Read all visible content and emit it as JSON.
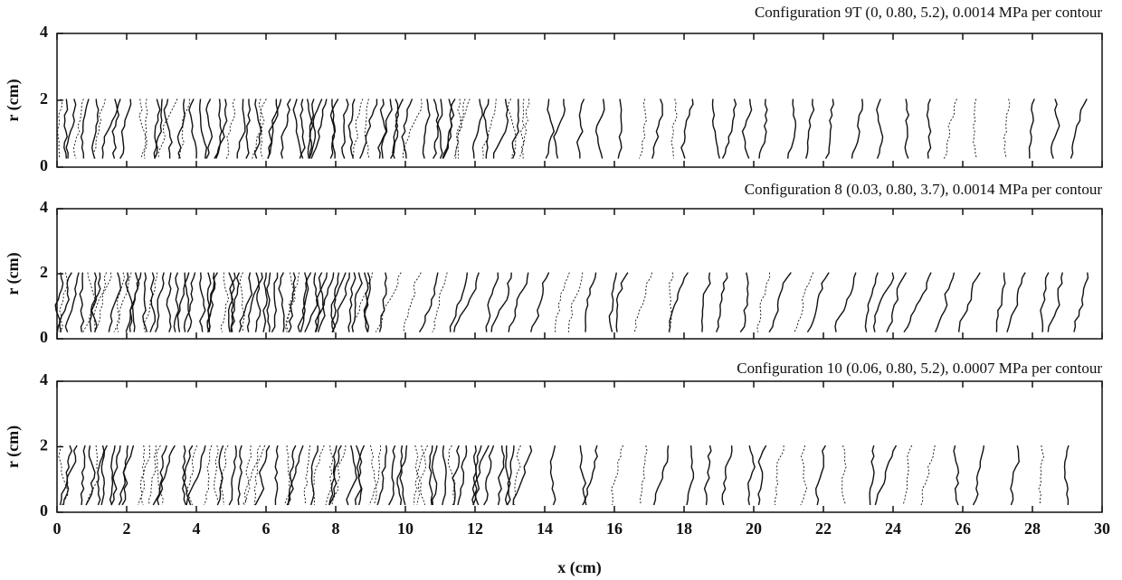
{
  "chart_data": [
    {
      "type": "contour",
      "title": "Configuration 9T (0, 0.80, 5.2), 0.0014 MPa per contour",
      "ylabel": "r (cm)",
      "xlim": [
        0,
        30
      ],
      "xticks": [
        0,
        2,
        4,
        6,
        8,
        10,
        12,
        14,
        16,
        18,
        20,
        22,
        24,
        26,
        28,
        30
      ],
      "ylim": [
        0,
        4
      ],
      "yticks": [
        0,
        2,
        4
      ]
    },
    {
      "type": "contour",
      "title": "Configuration 8 (0.03, 0.80, 3.7), 0.0014 MPa per contour",
      "ylabel": "r (cm)",
      "xlim": [
        0,
        30
      ],
      "xticks": [
        0,
        2,
        4,
        6,
        8,
        10,
        12,
        14,
        16,
        18,
        20,
        22,
        24,
        26,
        28,
        30
      ],
      "ylim": [
        0,
        4
      ],
      "yticks": [
        0,
        2,
        4
      ]
    },
    {
      "type": "contour",
      "title": "Configuration 10 (0.06, 0.80, 5.2), 0.0007 MPa per contour",
      "ylabel": "r (cm)",
      "xlabel": "x (cm)",
      "xlim": [
        0,
        30
      ],
      "xticks": [
        0,
        2,
        4,
        6,
        8,
        10,
        12,
        14,
        16,
        18,
        20,
        22,
        24,
        26,
        28,
        30
      ],
      "ylim": [
        0,
        4
      ],
      "yticks": [
        0,
        2,
        4
      ]
    }
  ]
}
